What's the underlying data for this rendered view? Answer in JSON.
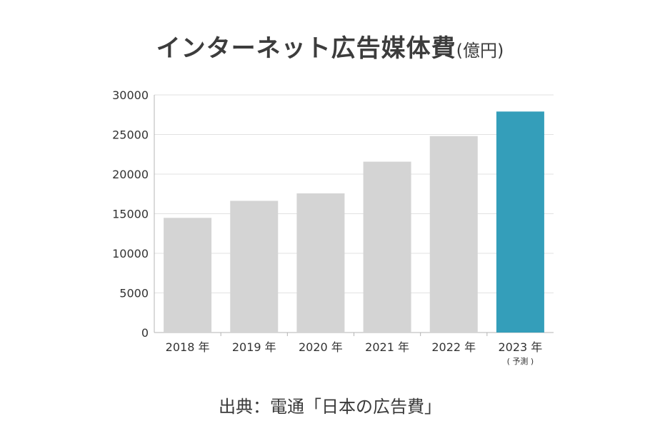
{
  "title": {
    "main": "インターネット広告媒体費",
    "unit": "(億円)"
  },
  "source": "出典：電通「日本の広告費」",
  "colors": {
    "bar": "#d4d4d4",
    "highlight": "#349eba",
    "grid": "#e2e2e2",
    "axis": "#b4b4b4",
    "text": "#333333"
  },
  "chart_data": {
    "type": "bar",
    "categories": [
      "2018 年",
      "2019 年",
      "2020 年",
      "2021 年",
      "2022 年",
      "2023 年"
    ],
    "category_notes": [
      "",
      "",
      "",
      "",
      "",
      "( 予測 )"
    ],
    "values": [
      14480,
      16630,
      17570,
      21570,
      24800,
      27900
    ],
    "highlight_index": 5,
    "ylim": [
      0,
      30000
    ],
    "yticks": [
      "0",
      "5000",
      "10000",
      "15000",
      "20000",
      "25000",
      "30000"
    ],
    "grid": true,
    "title": "インターネット広告媒体費(億円)",
    "xlabel": "",
    "ylabel": ""
  }
}
